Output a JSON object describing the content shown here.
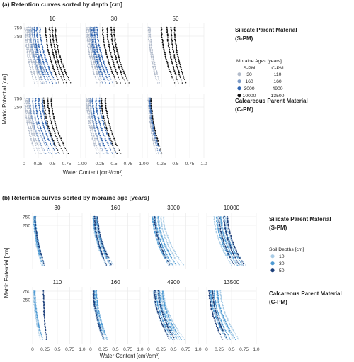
{
  "chart_data": [
    {
      "type": "scatter",
      "title": "(a) Retention curves sorted by depth [cm]",
      "xlabel": "Water Content [cm³/cm³]",
      "ylabel": "Matric Potential [cm]",
      "xlim": [
        0,
        1.0
      ],
      "x_ticks": [
        "0",
        "0.25",
        "0.5",
        "0.75",
        "1.0"
      ],
      "y_ticks": [
        "750",
        "250"
      ],
      "columns": [
        "10",
        "30",
        "50"
      ],
      "rows": [
        "Silicate Parent Material\n(S-PM)",
        "Calcareous Parent Material\n(C-PM)"
      ],
      "row_labels": [
        {
          "line1": "Silicate Parent Material",
          "line2": "(S-PM)"
        },
        {
          "line1": "Calcareous Parent Material",
          "line2": "(C-PM)"
        }
      ],
      "legend": {
        "title": "Moraine Ages [years]",
        "col_headers": [
          "S-PM",
          "C-PM"
        ],
        "entries": [
          {
            "spm": "30",
            "cpm": "110",
            "color": "#b3bccb"
          },
          {
            "spm": "160",
            "cpm": "160",
            "color": "#7d9bc6"
          },
          {
            "spm": "3000",
            "cpm": "4900",
            "color": "#2f64b0"
          },
          {
            "spm": "10000",
            "cpm": "13500",
            "color": "#111111"
          }
        ]
      },
      "series": [
        {
          "row": 0,
          "col": 0,
          "color": "#b3bccb",
          "x0": [
            0.02,
            0.05,
            0.08,
            0.11
          ],
          "x1": [
            0.18,
            0.24,
            0.3,
            0.35
          ]
        },
        {
          "row": 0,
          "col": 0,
          "color": "#7d9bc6",
          "x0": [
            0.1,
            0.14,
            0.18
          ],
          "x1": [
            0.33,
            0.4,
            0.45
          ]
        },
        {
          "row": 0,
          "col": 0,
          "color": "#2f64b0",
          "x0": [
            0.18,
            0.22,
            0.28
          ],
          "x1": [
            0.4,
            0.5,
            0.56
          ]
        },
        {
          "row": 0,
          "col": 0,
          "color": "#111111",
          "x0": [
            0.38,
            0.45,
            0.5,
            0.55
          ],
          "x1": [
            0.62,
            0.7,
            0.75,
            0.82
          ]
        },
        {
          "row": 0,
          "col": 1,
          "color": "#b3bccb",
          "x0": [
            0.02,
            0.05,
            0.08
          ],
          "x1": [
            0.2,
            0.26,
            0.3
          ]
        },
        {
          "row": 0,
          "col": 1,
          "color": "#7d9bc6",
          "x0": [
            0.08,
            0.12,
            0.16
          ],
          "x1": [
            0.3,
            0.36,
            0.42
          ]
        },
        {
          "row": 0,
          "col": 1,
          "color": "#2f64b0",
          "x0": [
            0.1,
            0.15,
            0.2
          ],
          "x1": [
            0.35,
            0.42,
            0.48
          ]
        },
        {
          "row": 0,
          "col": 1,
          "color": "#111111",
          "x0": [
            0.3,
            0.38,
            0.45,
            0.5
          ],
          "x1": [
            0.55,
            0.62,
            0.7,
            0.76
          ]
        },
        {
          "row": 0,
          "col": 2,
          "color": "#b3bccb",
          "x0": [
            0.02,
            0.05
          ],
          "x1": [
            0.18,
            0.22
          ]
        },
        {
          "row": 0,
          "col": 2,
          "color": "#111111",
          "x0": [
            0.25,
            0.35,
            0.42,
            0.48
          ],
          "x1": [
            0.48,
            0.55,
            0.62,
            0.68
          ]
        },
        {
          "row": 1,
          "col": 0,
          "color": "#b3bccb",
          "x0": [
            0.02,
            0.05,
            0.08,
            0.1
          ],
          "x1": [
            0.2,
            0.26,
            0.3,
            0.36
          ]
        },
        {
          "row": 1,
          "col": 0,
          "color": "#7d9bc6",
          "x0": [
            0.1,
            0.15
          ],
          "x1": [
            0.38,
            0.45
          ]
        },
        {
          "row": 1,
          "col": 0,
          "color": "#2f64b0",
          "x0": [
            0.2,
            0.26,
            0.32
          ],
          "x1": [
            0.48,
            0.56,
            0.62
          ]
        },
        {
          "row": 1,
          "col": 0,
          "color": "#111111",
          "x0": [
            0.35,
            0.42,
            0.48
          ],
          "x1": [
            0.62,
            0.7,
            0.78
          ]
        },
        {
          "row": 1,
          "col": 1,
          "color": "#b3bccb",
          "x0": [
            0.02,
            0.05,
            0.08
          ],
          "x1": [
            0.2,
            0.24,
            0.3
          ]
        },
        {
          "row": 1,
          "col": 1,
          "color": "#7d9bc6",
          "x0": [
            0.08,
            0.12
          ],
          "x1": [
            0.32,
            0.38
          ]
        },
        {
          "row": 1,
          "col": 1,
          "color": "#2f64b0",
          "x0": [
            0.12,
            0.18,
            0.24
          ],
          "x1": [
            0.4,
            0.48,
            0.55
          ]
        },
        {
          "row": 1,
          "col": 1,
          "color": "#111111",
          "x0": [
            0.28,
            0.35
          ],
          "x1": [
            0.55,
            0.62
          ]
        },
        {
          "row": 1,
          "col": 2,
          "color": "#b3bccb",
          "x0": [
            0.02,
            0.04
          ],
          "x1": [
            0.16,
            0.2
          ]
        },
        {
          "row": 1,
          "col": 2,
          "color": "#7d9bc6",
          "x0": [
            0.04,
            0.06
          ],
          "x1": [
            0.2,
            0.24
          ]
        },
        {
          "row": 1,
          "col": 2,
          "color": "#2f64b0",
          "x0": [
            0.05
          ],
          "x1": [
            0.24
          ]
        },
        {
          "row": 1,
          "col": 2,
          "color": "#111111",
          "x0": [
            0.07
          ],
          "x1": [
            0.26
          ]
        }
      ]
    },
    {
      "type": "scatter",
      "title": "(b) Retention curves sorted by moraine age [years]",
      "xlabel": "Water Content [cm³/cm³]",
      "ylabel": "Matric Potential [cm]",
      "xlim": [
        0,
        1.0
      ],
      "x_ticks": [
        "0",
        "0.25",
        "0.5",
        "0.75",
        "1.0"
      ],
      "y_ticks": [
        "750",
        "250"
      ],
      "row_columns": [
        [
          "30",
          "160",
          "3000",
          "10000"
        ],
        [
          "110",
          "160",
          "4900",
          "13500"
        ]
      ],
      "row_labels": [
        {
          "line1": "Silicate Parent Material",
          "line2": "(S-PM)"
        },
        {
          "line1": "Calcareous Parent Material",
          "line2": "(C-PM)"
        }
      ],
      "legend": {
        "title": "Soil Depths [cm]",
        "entries": [
          {
            "label": "10",
            "color": "#a9cce6"
          },
          {
            "label": "30",
            "color": "#4e9ad3"
          },
          {
            "label": "50",
            "color": "#1d3f7a"
          }
        ]
      },
      "series": [
        {
          "row": 0,
          "col": 0,
          "color": "#a9cce6",
          "x0": [
            0.02,
            0.05
          ],
          "x1": [
            0.18,
            0.22
          ]
        },
        {
          "row": 0,
          "col": 0,
          "color": "#4e9ad3",
          "x0": [
            0.03,
            0.06
          ],
          "x1": [
            0.2,
            0.24
          ]
        },
        {
          "row": 0,
          "col": 0,
          "color": "#1d3f7a",
          "x0": [
            0.05
          ],
          "x1": [
            0.24
          ]
        },
        {
          "row": 0,
          "col": 1,
          "color": "#a9cce6",
          "x0": [
            0.05,
            0.1,
            0.14
          ],
          "x1": [
            0.3,
            0.38,
            0.45
          ]
        },
        {
          "row": 0,
          "col": 1,
          "color": "#4e9ad3",
          "x0": [
            0.06,
            0.12
          ],
          "x1": [
            0.32,
            0.4
          ]
        },
        {
          "row": 0,
          "col": 1,
          "color": "#1d3f7a",
          "x0": [
            0.08,
            0.14
          ],
          "x1": [
            0.32,
            0.42
          ]
        },
        {
          "row": 0,
          "col": 2,
          "color": "#a9cce6",
          "x0": [
            0.1,
            0.18,
            0.25,
            0.3
          ],
          "x1": [
            0.45,
            0.55,
            0.62,
            0.7
          ]
        },
        {
          "row": 0,
          "col": 2,
          "color": "#4e9ad3",
          "x0": [
            0.08,
            0.14,
            0.2
          ],
          "x1": [
            0.4,
            0.48,
            0.55
          ]
        },
        {
          "row": 0,
          "col": 2,
          "color": "#1d3f7a",
          "x0": [
            0.12
          ],
          "x1": [
            0.42
          ]
        },
        {
          "row": 0,
          "col": 3,
          "color": "#a9cce6",
          "x0": [
            0.15,
            0.22,
            0.3,
            0.38
          ],
          "x1": [
            0.5,
            0.6,
            0.68,
            0.78
          ]
        },
        {
          "row": 0,
          "col": 3,
          "color": "#4e9ad3",
          "x0": [
            0.2,
            0.28,
            0.35
          ],
          "x1": [
            0.55,
            0.62,
            0.72
          ]
        },
        {
          "row": 0,
          "col": 3,
          "color": "#1d3f7a",
          "x0": [
            0.25,
            0.35,
            0.42
          ],
          "x1": [
            0.55,
            0.65,
            0.75
          ]
        },
        {
          "row": 1,
          "col": 0,
          "color": "#a9cce6",
          "x0": [
            0.02,
            0.05
          ],
          "x1": [
            0.16,
            0.2
          ]
        },
        {
          "row": 1,
          "col": 0,
          "color": "#4e9ad3",
          "x0": [
            0.04
          ],
          "x1": [
            0.2
          ]
        },
        {
          "row": 1,
          "col": 0,
          "color": "#1d3f7a",
          "x0": [
            0.22
          ],
          "x1": [
            0.28
          ]
        },
        {
          "row": 1,
          "col": 1,
          "color": "#a9cce6",
          "x0": [
            0.05,
            0.1
          ],
          "x1": [
            0.25,
            0.32
          ]
        },
        {
          "row": 1,
          "col": 1,
          "color": "#4e9ad3",
          "x0": [
            0.08,
            0.12
          ],
          "x1": [
            0.28,
            0.34
          ]
        },
        {
          "row": 1,
          "col": 1,
          "color": "#1d3f7a",
          "x0": [
            0.06
          ],
          "x1": [
            0.26
          ]
        },
        {
          "row": 1,
          "col": 2,
          "color": "#a9cce6",
          "x0": [
            0.1,
            0.18,
            0.25,
            0.3
          ],
          "x1": [
            0.45,
            0.55,
            0.62,
            0.72
          ]
        },
        {
          "row": 1,
          "col": 2,
          "color": "#4e9ad3",
          "x0": [
            0.15,
            0.22,
            0.28
          ],
          "x1": [
            0.48,
            0.58,
            0.66
          ]
        },
        {
          "row": 1,
          "col": 2,
          "color": "#1d3f7a",
          "x0": [
            0.12,
            0.2
          ],
          "x1": [
            0.42,
            0.52
          ]
        },
        {
          "row": 1,
          "col": 3,
          "color": "#a9cce6",
          "x0": [
            0.1,
            0.2,
            0.28
          ],
          "x1": [
            0.42,
            0.55,
            0.65
          ]
        },
        {
          "row": 1,
          "col": 3,
          "color": "#4e9ad3",
          "x0": [
            0.08,
            0.15,
            0.22
          ],
          "x1": [
            0.4,
            0.48,
            0.58
          ]
        },
        {
          "row": 1,
          "col": 3,
          "color": "#1d3f7a",
          "x0": [
            0.05,
            0.12
          ],
          "x1": [
            0.32,
            0.42
          ]
        }
      ]
    }
  ]
}
